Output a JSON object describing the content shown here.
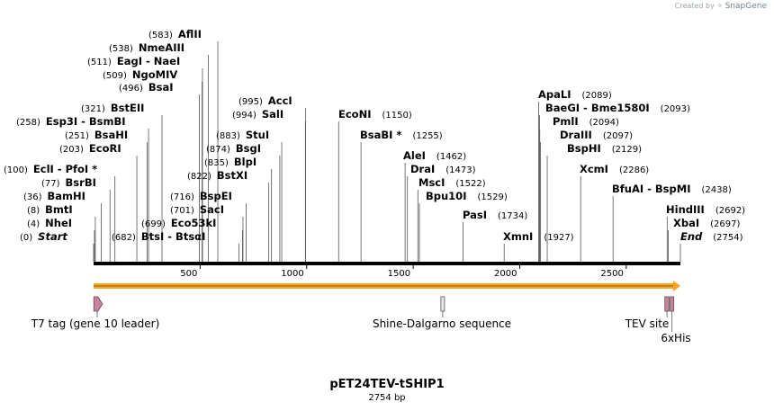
{
  "watermark": {
    "prefix": "Created by",
    "brand": "SnapGene"
  },
  "plasmid": {
    "name": "pET24TEV-tSHIP1",
    "size_label": "2754 bp",
    "length": 2754
  },
  "axis": {
    "ticks": [
      500,
      1000,
      1500,
      2000,
      2500
    ]
  },
  "sites": [
    {
      "pos": 0,
      "label": "(0)",
      "name": "Start",
      "italic": true
    },
    {
      "pos": 4,
      "label": "(4)",
      "name": "NheI"
    },
    {
      "pos": 8,
      "label": "(8)",
      "name": "BmtI"
    },
    {
      "pos": 36,
      "label": "(36)",
      "name": "BamHI"
    },
    {
      "pos": 77,
      "label": "(77)",
      "name": "BsrBI"
    },
    {
      "pos": 100,
      "label": "(100)",
      "name": "EclI  -  PfoI *"
    },
    {
      "pos": 203,
      "label": "(203)",
      "name": "EcoRI"
    },
    {
      "pos": 251,
      "label": "(251)",
      "name": "BsaHI"
    },
    {
      "pos": 258,
      "label": "(258)",
      "name": "Esp3I  -  BsmBI"
    },
    {
      "pos": 321,
      "label": "(321)",
      "name": "BstEII"
    },
    {
      "pos": 496,
      "label": "(496)",
      "name": "BsaI"
    },
    {
      "pos": 509,
      "label": "(509)",
      "name": "NgoMIV"
    },
    {
      "pos": 511,
      "label": "(511)",
      "name": "EagI  -  NaeI"
    },
    {
      "pos": 538,
      "label": "(538)",
      "name": "NmeAIII"
    },
    {
      "pos": 583,
      "label": "(583)",
      "name": "AflII"
    },
    {
      "pos": 682,
      "label": "(682)",
      "name": "BtsI  -  BtsαI"
    },
    {
      "pos": 699,
      "label": "(699)",
      "name": "Eco53kI"
    },
    {
      "pos": 701,
      "label": "(701)",
      "name": "SacI"
    },
    {
      "pos": 716,
      "label": "(716)",
      "name": "BspEI"
    },
    {
      "pos": 822,
      "label": "(822)",
      "name": "BstXI"
    },
    {
      "pos": 835,
      "label": "(835)",
      "name": "BlpI"
    },
    {
      "pos": 874,
      "label": "(874)",
      "name": "BsgI"
    },
    {
      "pos": 883,
      "label": "(883)",
      "name": "StuI"
    },
    {
      "pos": 994,
      "label": "(994)",
      "name": "SalI"
    },
    {
      "pos": 995,
      "label": "(995)",
      "name": "AccI"
    },
    {
      "pos": 1150,
      "label": "(1150)",
      "name": "EcoNI"
    },
    {
      "pos": 1255,
      "label": "(1255)",
      "name": "BsaBI *"
    },
    {
      "pos": 1462,
      "label": "(1462)",
      "name": "AleI"
    },
    {
      "pos": 1473,
      "label": "(1473)",
      "name": "DraI"
    },
    {
      "pos": 1522,
      "label": "(1522)",
      "name": "MscI"
    },
    {
      "pos": 1529,
      "label": "(1529)",
      "name": "Bpu10I"
    },
    {
      "pos": 1734,
      "label": "(1734)",
      "name": "PasI"
    },
    {
      "pos": 1927,
      "label": "(1927)",
      "name": "XmnI"
    },
    {
      "pos": 2089,
      "label": "(2089)",
      "name": "ApaLI"
    },
    {
      "pos": 2093,
      "label": "(2093)",
      "name": "BaeGI  -  Bme1580I"
    },
    {
      "pos": 2094,
      "label": "(2094)",
      "name": "PmlI"
    },
    {
      "pos": 2097,
      "label": "(2097)",
      "name": "DraIII"
    },
    {
      "pos": 2129,
      "label": "(2129)",
      "name": "BspHI"
    },
    {
      "pos": 2286,
      "label": "(2286)",
      "name": "XcmI"
    },
    {
      "pos": 2438,
      "label": "(2438)",
      "name": "BfuAI  -  BspMI"
    },
    {
      "pos": 2692,
      "label": "(2692)",
      "name": "HindIII"
    },
    {
      "pos": 2697,
      "label": "(2697)",
      "name": "XbaI"
    },
    {
      "pos": 2754,
      "label": "(2754)",
      "name": "End",
      "italic": true
    }
  ],
  "features": [
    {
      "name": "T7 tag (gene 10 leader)",
      "start": 1,
      "end": 33,
      "color": "#c8849e",
      "kind": "arrow"
    },
    {
      "name": "Shine-Dalgarno sequence",
      "start": 1630,
      "end": 1636,
      "color": "#e8e8e8",
      "kind": "box"
    },
    {
      "name": "TEV site",
      "start": 2681,
      "end": 2701,
      "color": "#c8849e",
      "kind": "box"
    },
    {
      "name": "6xHis",
      "start": 2706,
      "end": 2723,
      "color": "#c8849e",
      "kind": "box"
    }
  ],
  "colors": {
    "backbone": "#000000",
    "orf_arrow": "#f6a623",
    "feature_pink": "#c8849e",
    "label_num": "#000000"
  }
}
